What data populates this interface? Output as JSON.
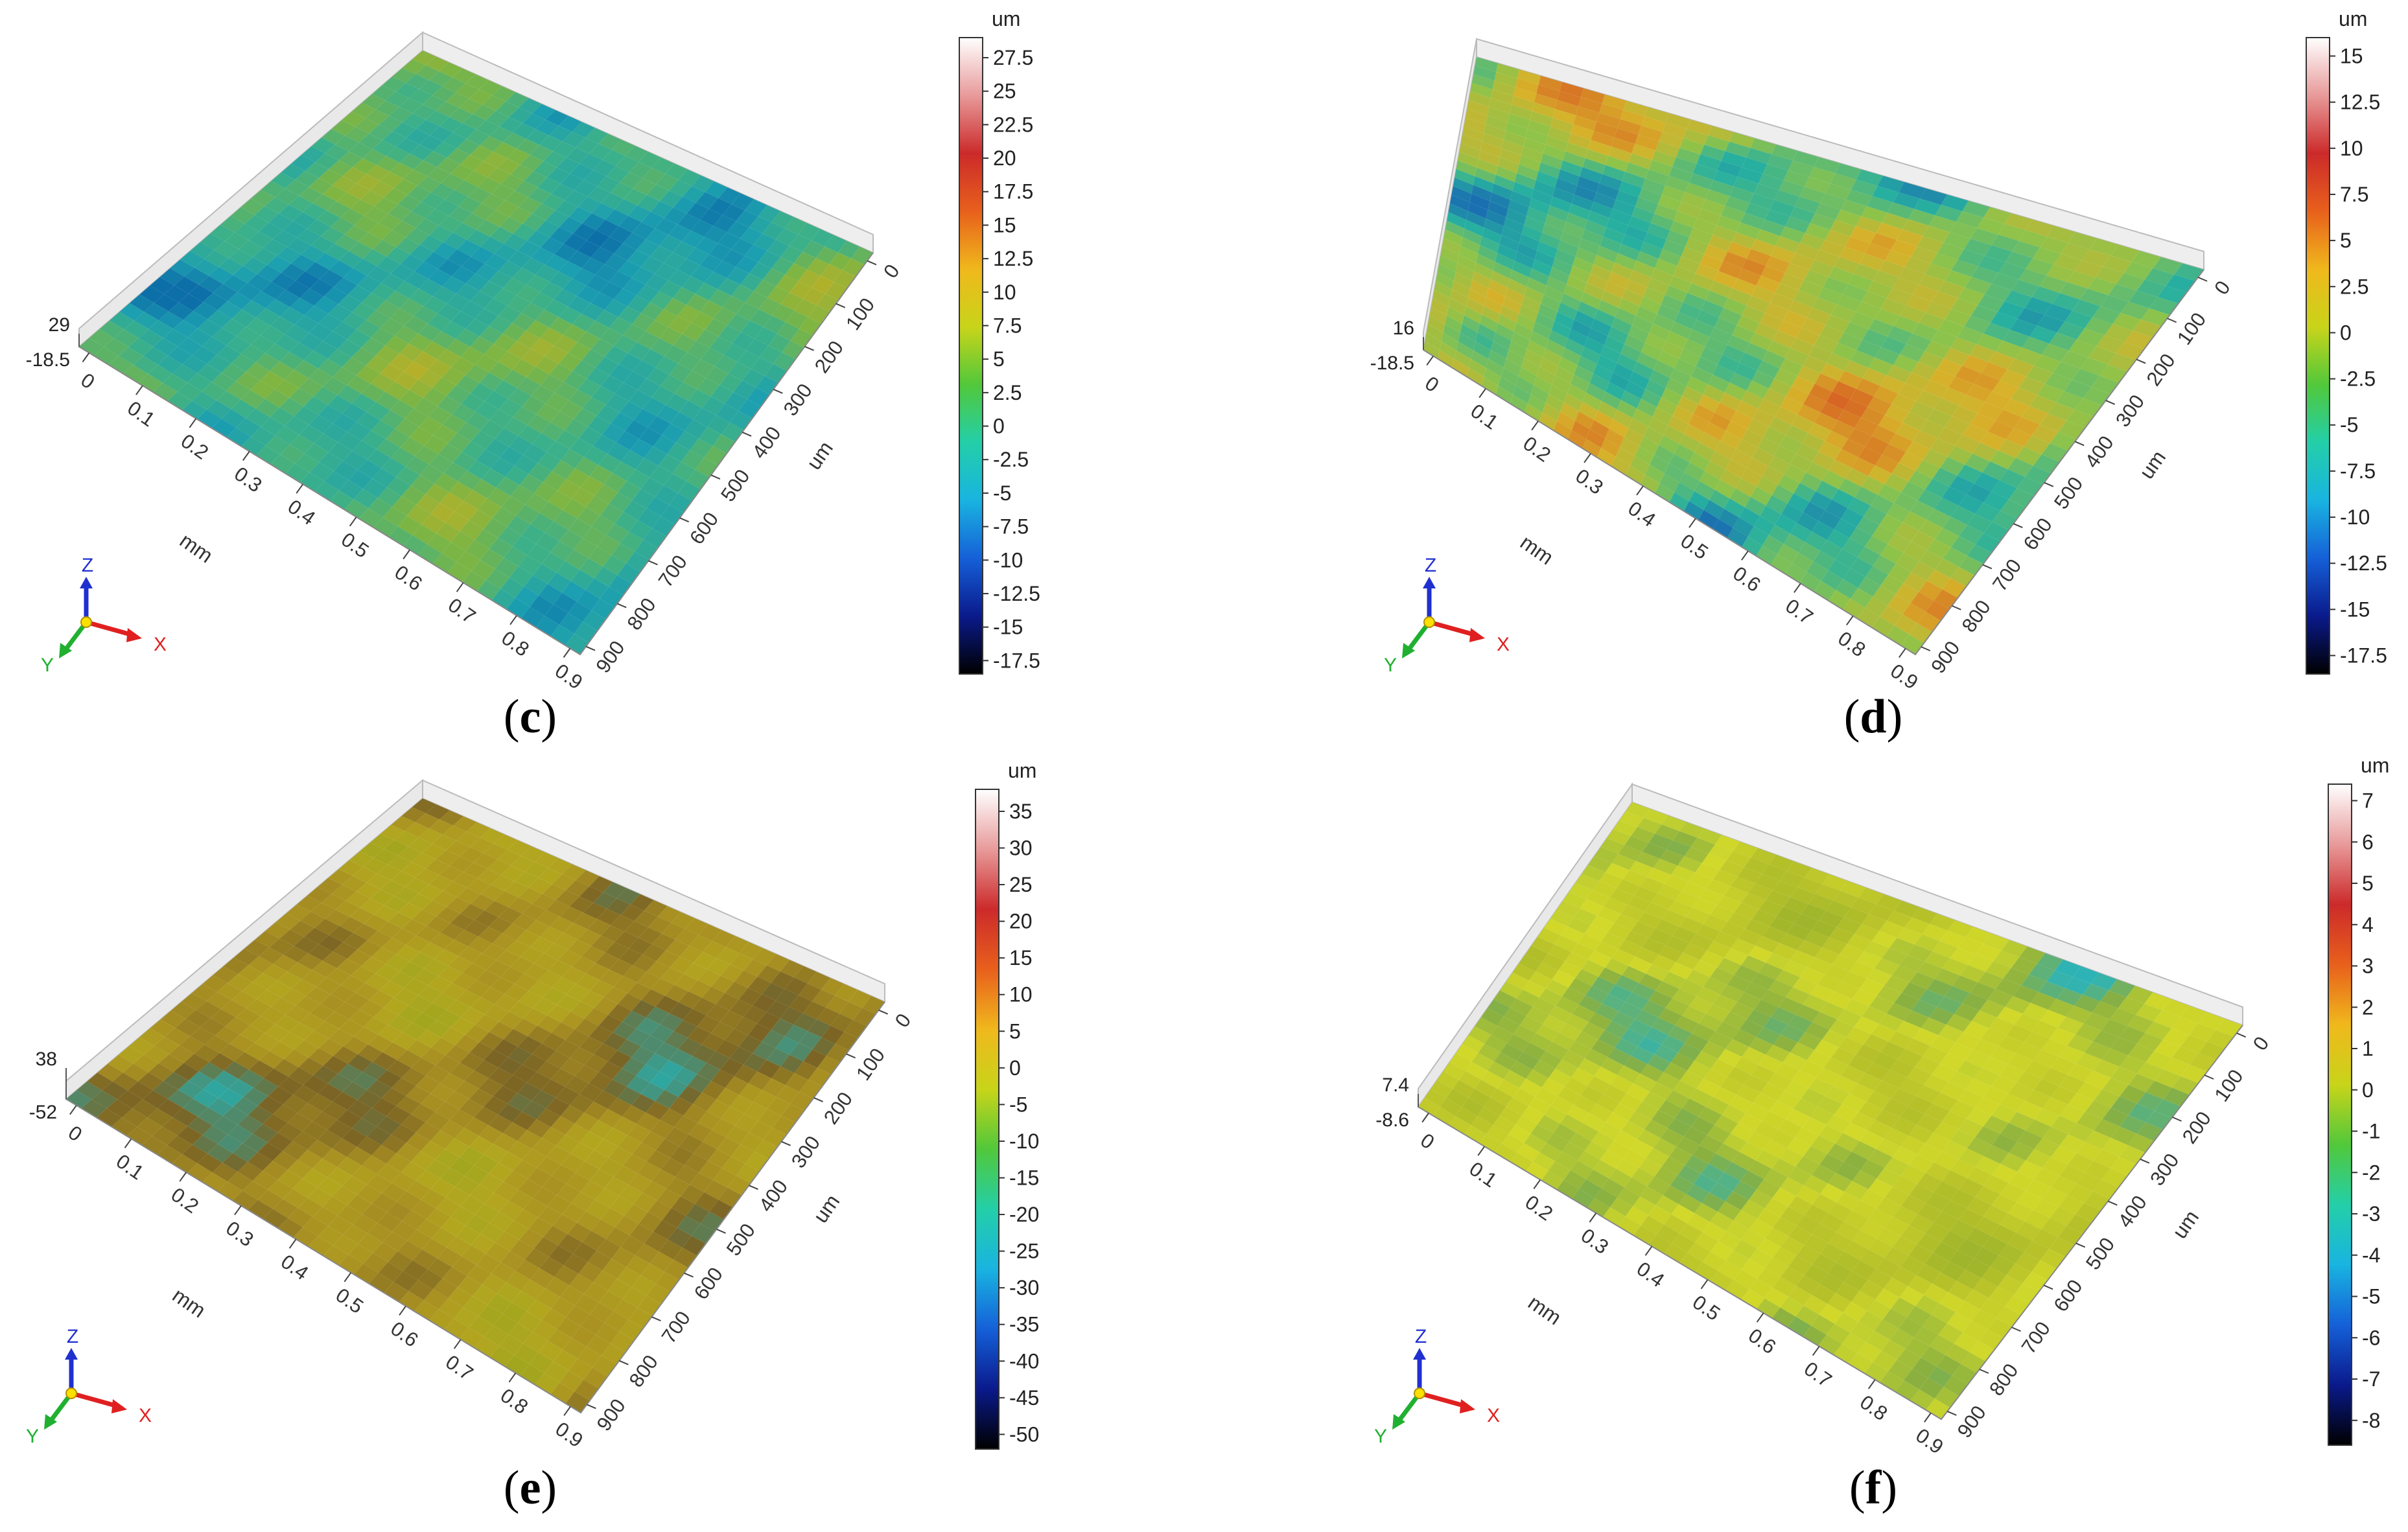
{
  "chart_data": [
    {
      "type": "heatmap",
      "panel_label": "c",
      "x_ticks": [
        "0",
        "0.1",
        "0.2",
        "0.3",
        "0.4",
        "0.5",
        "0.6",
        "0.7",
        "0.8",
        "0.9"
      ],
      "x_unit": "mm",
      "y_ticks": [
        "0",
        "100",
        "200",
        "300",
        "400",
        "500",
        "600",
        "700",
        "800",
        "900"
      ],
      "y_unit": "um",
      "z_max_label": "29",
      "z_min_label": "-18.5",
      "colorbar_unit": "um",
      "colorbar_ticks": [
        "27.5",
        "25",
        "22.5",
        "20",
        "17.5",
        "15",
        "12.5",
        "10",
        "7.5",
        "5",
        "2.5",
        "0",
        "-2.5",
        "-5",
        "-7.5",
        "-10",
        "-12.5",
        "-15",
        "-17.5"
      ],
      "zlim": [
        -18.5,
        29
      ],
      "surface_palette": [
        "#0d6fa8",
        "#1c9fb0",
        "#3bb08a",
        "#7cb544",
        "#b9b027"
      ],
      "axis_triad": {
        "x": "X",
        "y": "Y",
        "z": "Z"
      }
    },
    {
      "type": "heatmap",
      "panel_label": "d",
      "x_ticks": [
        "0",
        "0.1",
        "0.2",
        "0.3",
        "0.4",
        "0.5",
        "0.6",
        "0.7",
        "0.8",
        "0.9"
      ],
      "x_unit": "mm",
      "y_ticks": [
        "0",
        "100",
        "200",
        "300",
        "400",
        "500",
        "600",
        "700",
        "800",
        "900"
      ],
      "y_unit": "um",
      "z_max_label": "16",
      "z_min_label": "-18.5",
      "colorbar_unit": "um",
      "colorbar_ticks": [
        "15",
        "12.5",
        "10",
        "7.5",
        "5",
        "2.5",
        "0",
        "-2.5",
        "-5",
        "-7.5",
        "-10",
        "-12.5",
        "-15",
        "-17.5"
      ],
      "zlim": [
        -18.5,
        16
      ],
      "surface_palette": [
        "#1a6fb0",
        "#27b0a0",
        "#8ec34a",
        "#d7b22a",
        "#d75d22"
      ],
      "axis_triad": {
        "x": "X",
        "y": "Y",
        "z": "Z"
      }
    },
    {
      "type": "heatmap",
      "panel_label": "e",
      "x_ticks": [
        "0",
        "0.1",
        "0.2",
        "0.3",
        "0.4",
        "0.5",
        "0.6",
        "0.7",
        "0.8",
        "0.9"
      ],
      "x_unit": "mm",
      "y_ticks": [
        "0",
        "100",
        "200",
        "300",
        "400",
        "500",
        "600",
        "700",
        "800",
        "900"
      ],
      "y_unit": "um",
      "z_max_label": "38",
      "z_min_label": "-52",
      "colorbar_unit": "um",
      "colorbar_ticks": [
        "35",
        "30",
        "25",
        "20",
        "15",
        "10",
        "5",
        "0",
        "-5",
        "-10",
        "-15",
        "-20",
        "-25",
        "-30",
        "-35",
        "-40",
        "-45",
        "-50"
      ],
      "zlim": [
        -52,
        38
      ],
      "surface_palette": [
        "#9aa51e",
        "#b3a61f",
        "#a88f22",
        "#7b6424",
        "#2fa6a0"
      ],
      "axis_triad": {
        "x": "X",
        "y": "Y",
        "z": "Z"
      }
    },
    {
      "type": "heatmap",
      "panel_label": "f",
      "x_ticks": [
        "0",
        "0.1",
        "0.2",
        "0.3",
        "0.4",
        "0.5",
        "0.6",
        "0.7",
        "0.8",
        "0.9"
      ],
      "x_unit": "mm",
      "y_ticks": [
        "0",
        "100",
        "200",
        "300",
        "400",
        "500",
        "600",
        "700",
        "800",
        "900"
      ],
      "y_unit": "um",
      "z_max_label": "7.4",
      "z_min_label": "-8.6",
      "colorbar_unit": "um",
      "colorbar_ticks": [
        "7",
        "6",
        "5",
        "4",
        "3",
        "2",
        "1",
        "0",
        "-1",
        "-2",
        "-3",
        "-4",
        "-5",
        "-6",
        "-7",
        "-8"
      ],
      "zlim": [
        -8.6,
        7.4
      ],
      "surface_palette": [
        "#9fb52b",
        "#b8c22a",
        "#d2d92a",
        "#8ab040",
        "#2db3b6"
      ],
      "axis_triad": {
        "x": "X",
        "y": "Y",
        "z": "Z"
      }
    }
  ],
  "colorbar_colors": [
    "#000000",
    "#0a1a8c",
    "#1560d8",
    "#19b4e0",
    "#23cfa8",
    "#52c83a",
    "#c8d41a",
    "#f0b81c",
    "#e8601c",
    "#cc2a2a",
    "#e89a9a",
    "#ffffff"
  ],
  "triad_colors": {
    "x": "#e02020",
    "y": "#20b030",
    "z": "#2030d0"
  }
}
